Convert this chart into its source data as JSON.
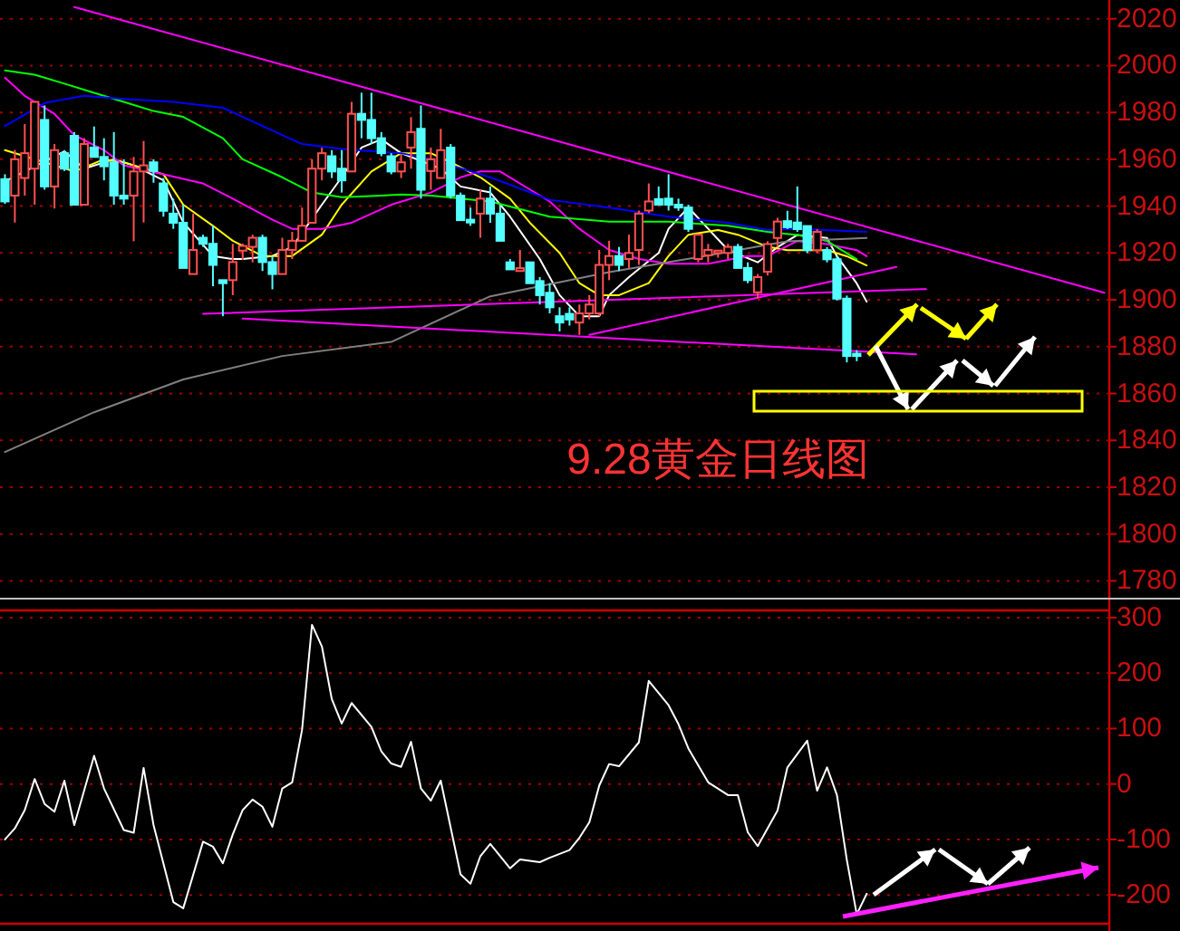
{
  "chart_data": [
    {
      "type": "candlestick",
      "title": "9.28黄金日线图",
      "grid": "y",
      "tick_labels": "y",
      "categories": [
        null,
        null,
        null,
        null,
        null,
        null,
        null,
        null,
        null,
        null,
        null,
        null,
        null,
        null,
        null,
        null,
        null,
        null,
        null,
        null,
        null,
        null,
        null,
        null,
        null,
        null,
        null,
        null,
        null,
        null,
        null,
        null,
        null,
        null,
        null,
        null,
        null,
        null,
        null,
        null,
        null,
        null,
        null,
        null,
        null,
        null,
        null,
        null,
        null,
        null,
        null,
        null,
        null,
        null,
        null,
        null,
        null,
        null,
        null,
        null,
        null,
        null,
        null,
        null,
        null,
        null,
        null,
        null,
        null,
        null,
        null,
        null,
        null,
        null,
        null,
        null,
        null,
        null,
        null,
        null,
        null,
        null,
        null,
        null,
        null,
        null,
        null,
        null,
        null,
        null,
        null,
        null,
        null,
        null,
        null,
        null,
        null,
        null,
        null,
        null,
        null,
        null,
        null,
        null,
        null,
        null,
        null,
        null,
        null,
        null,
        null,
        null
      ],
      "ylim": [
        1779,
        2028
      ],
      "yticks": [
        1780,
        1800,
        1820,
        1840,
        1860,
        1880,
        1900,
        1920,
        1940,
        1960,
        1980,
        2000,
        2020
      ],
      "ohlc": [
        [
          1951.5,
          1953.6,
          1941,
          1942
        ],
        [
          1944.5,
          1964,
          1933,
          1960
        ],
        [
          1952,
          1975,
          1944.5,
          1962.6
        ],
        [
          1956,
          1984.5,
          1940.6,
          1984.5
        ],
        [
          1976.8,
          1983,
          1947,
          1948.4
        ],
        [
          1948.4,
          1966.5,
          1939,
          1963.9
        ],
        [
          1962.6,
          1963.9,
          1955,
          1956
        ],
        [
          1970,
          1971.6,
          1940.6,
          1940.6
        ],
        [
          1940.6,
          1969,
          1940.6,
          1966.5
        ],
        [
          1965,
          1974,
          1961,
          1961
        ],
        [
          1961,
          1969,
          1951,
          1957
        ],
        [
          1958.7,
          1971.6,
          1940.6,
          1944.5
        ],
        [
          1944.5,
          1960,
          1940.6,
          1943.2
        ],
        [
          1944.5,
          1961,
          1925,
          1954.8
        ],
        [
          1954.8,
          1967.8,
          1933,
          1957.4
        ],
        [
          1958.7,
          1960,
          1950,
          1955
        ],
        [
          1949.7,
          1952,
          1935.5,
          1938
        ],
        [
          1936.8,
          1943.2,
          1930.3,
          1932.9
        ],
        [
          1932.9,
          1940.6,
          1913.6,
          1913.6
        ],
        [
          1911,
          1936.8,
          1911,
          1921.3
        ],
        [
          1926.5,
          1927.8,
          1922.6,
          1923.9
        ],
        [
          1923.9,
          1931.6,
          1905.8,
          1914.9
        ],
        [
          1908.4,
          1908.4,
          1893,
          1907.1
        ],
        [
          1908.4,
          1923.9,
          1902,
          1916.1
        ],
        [
          1921,
          1924,
          1917,
          1923
        ],
        [
          1922.6,
          1927.8,
          1916,
          1926.5
        ],
        [
          1926.5,
          1927.8,
          1912.3,
          1916.1
        ],
        [
          1916.1,
          1918.7,
          1904.5,
          1911
        ],
        [
          1911,
          1926.5,
          1911,
          1921.3
        ],
        [
          1921.3,
          1929,
          1917.4,
          1925.2
        ],
        [
          1925.2,
          1939.4,
          1925.2,
          1931.6
        ],
        [
          1932.9,
          1960,
          1932.9,
          1956
        ],
        [
          1956,
          1965,
          1951,
          1962.6
        ],
        [
          1961.3,
          1963.9,
          1952,
          1954.8
        ],
        [
          1956,
          1963.9,
          1945.8,
          1951
        ],
        [
          1954.8,
          1984.5,
          1954.8,
          1979.4
        ],
        [
          1979.4,
          1988.4,
          1969,
          1976.8
        ],
        [
          1976.8,
          1988.4,
          1966.5,
          1969
        ],
        [
          1969,
          1971.6,
          1961.3,
          1962.6
        ],
        [
          1961.3,
          1962.6,
          1953.6,
          1954.8
        ],
        [
          1954.8,
          1962,
          1952,
          1958.7
        ],
        [
          1965,
          1978,
          1956,
          1971.6
        ],
        [
          1973,
          1983,
          1943.2,
          1947
        ],
        [
          1955,
          1965,
          1947,
          1960
        ],
        [
          1952,
          1973,
          1952,
          1963.9
        ],
        [
          1965,
          1966.5,
          1943.2,
          1944.5
        ],
        [
          1944.5,
          1945.8,
          1934,
          1934
        ],
        [
          1934.2,
          1939.4,
          1931.6,
          1933
        ],
        [
          1936.8,
          1947,
          1926.5,
          1943.2
        ],
        [
          1943.2,
          1948.4,
          1932.9,
          1936.8
        ],
        [
          1936.8,
          1940.6,
          1925.2,
          1925.2
        ],
        [
          1916,
          1917.4,
          1912.8,
          1913
        ],
        [
          1912.3,
          1921.3,
          1912.3,
          1913.5
        ],
        [
          1916,
          1916,
          1907.1,
          1907.1
        ],
        [
          1908,
          1909.7,
          1898,
          1902
        ],
        [
          1903,
          1907.1,
          1894.2,
          1896.8
        ],
        [
          1893,
          1896.8,
          1886.5,
          1890.3
        ],
        [
          1894,
          1896.8,
          1889,
          1891.6
        ],
        [
          1890.3,
          1898,
          1885,
          1894.2
        ],
        [
          1894.2,
          1902,
          1891.6,
          1898
        ],
        [
          1894.2,
          1921.3,
          1892.9,
          1914.9
        ],
        [
          1914.9,
          1925.2,
          1908.4,
          1918.7
        ],
        [
          1918.7,
          1922.6,
          1912.3,
          1914.9
        ],
        [
          1917.4,
          1927.8,
          1913.6,
          1920
        ],
        [
          1921.3,
          1938.1,
          1914.9,
          1936.8
        ],
        [
          1938.1,
          1949.7,
          1937,
          1942
        ],
        [
          1943,
          1948.4,
          1940.6,
          1940.6
        ],
        [
          1943.2,
          1953.6,
          1938.1,
          1940.6
        ],
        [
          1940.6,
          1943.2,
          1938,
          1939.4
        ],
        [
          1939.4,
          1940.6,
          1929,
          1930.3
        ],
        [
          1917.4,
          1927.8,
          1916,
          1927.8
        ],
        [
          1919,
          1923.9,
          1916,
          1921.3
        ],
        [
          1920,
          1921.3,
          1918,
          1921
        ],
        [
          1920,
          1923.9,
          1917.4,
          1922.6
        ],
        [
          1922.6,
          1923.9,
          1913.6,
          1913.6
        ],
        [
          1913.6,
          1916,
          1907.1,
          1908.4
        ],
        [
          1903.2,
          1911,
          1900.6,
          1909.7
        ],
        [
          1912,
          1925,
          1910.4,
          1923.8
        ],
        [
          1926.4,
          1935,
          1922.5,
          1933.4
        ],
        [
          1933.6,
          1938,
          1930.2,
          1931
        ],
        [
          1933,
          1948.4,
          1929,
          1930.2
        ],
        [
          1931.5,
          1931.5,
          1919.9,
          1921.2
        ],
        [
          1921.2,
          1930.2,
          1919.9,
          1929
        ],
        [
          1921.2,
          1922.5,
          1916,
          1917.3
        ],
        [
          1917.3,
          1918.6,
          1899.7,
          1900.5
        ],
        [
          1900.5,
          1901.8,
          1873.3,
          1876
        ],
        [
          1877,
          1878.5,
          1873.8,
          1876
        ],
        null,
        null,
        null,
        null,
        null,
        null,
        null,
        null,
        null,
        null,
        null,
        null,
        null,
        null,
        null,
        null,
        null,
        null,
        null,
        null,
        null,
        null,
        null,
        null,
        null
      ],
      "series": [
        {
          "type": "line",
          "color": "#ffffff",
          "values": [
            1950.5,
            null,
            null,
            null,
            null,
            null,
            1963.4,
            null,
            1956,
            null,
            null,
            1960,
            null,
            1957.4,
            null,
            null,
            1951,
            null,
            1933,
            null,
            null,
            1918.7,
            null,
            1917.4,
            1917.4,
            null,
            null,
            1918.7,
            null,
            1922.6,
            null,
            null,
            1940.6,
            null,
            1952.3,
            null,
            1965,
            null,
            1968.5,
            null,
            1962.6,
            null,
            null,
            null,
            1956,
            null,
            1948.4,
            null,
            null,
            1945.8,
            null,
            1935.5,
            null,
            null,
            1917.4,
            null,
            1902,
            null,
            1893,
            null,
            1893,
            1902,
            null,
            1909.7,
            null,
            null,
            1920,
            1930.3,
            null,
            1939.4,
            null,
            1930.3,
            null,
            1921.3,
            null,
            null,
            1916,
            null,
            1922.5,
            null,
            1927.7,
            null,
            null,
            1926.4,
            1918.6,
            null,
            1907,
            1899.2,
            null,
            null,
            null,
            null,
            null,
            null,
            null,
            null,
            null,
            null,
            null,
            null,
            null,
            null,
            null,
            null,
            null,
            null,
            null,
            null,
            null,
            null,
            null,
            null
          ]
        },
        {
          "type": "line",
          "color": "#ffff00",
          "values": [
            1963.9,
            null,
            null,
            null,
            null,
            null,
            null,
            1954.8,
            null,
            null,
            1960,
            null,
            1958.7,
            null,
            null,
            null,
            1953.6,
            null,
            1940.6,
            null,
            null,
            1931.6,
            null,
            1925.2,
            null,
            null,
            1918.7,
            null,
            null,
            1918.7,
            null,
            null,
            1927.8,
            null,
            1940.6,
            null,
            null,
            1954.8,
            null,
            1960,
            1962.6,
            null,
            null,
            1962.6,
            null,
            1958.7,
            null,
            null,
            1952.3,
            null,
            null,
            1943.2,
            null,
            1932.9,
            null,
            null,
            1920,
            null,
            1907.1,
            null,
            1902,
            null,
            1902,
            null,
            null,
            1907.1,
            null,
            1918.7,
            null,
            1927.8,
            null,
            null,
            1929.8,
            null,
            1927.8,
            null,
            null,
            1922.6,
            null,
            1921.2,
            null,
            null,
            null,
            1921.2,
            null,
            1918.6,
            null,
            1914.7,
            null,
            null,
            null,
            null,
            null,
            null,
            null,
            null,
            null,
            null,
            null,
            null,
            null,
            null,
            null,
            null,
            null,
            null,
            null,
            null,
            null,
            null,
            null,
            null
          ]
        },
        {
          "type": "line",
          "color": "#ff00ff",
          "values": [
            1994.8,
            null,
            1987.1,
            null,
            null,
            1979.4,
            null,
            1970.3,
            null,
            null,
            1963.9,
            null,
            1957.4,
            null,
            null,
            null,
            1953.6,
            null,
            null,
            null,
            1949.7,
            null,
            null,
            1943.2,
            null,
            null,
            null,
            1934.2,
            null,
            1930.3,
            null,
            null,
            1930.3,
            null,
            null,
            1932.9,
            null,
            null,
            null,
            1940.6,
            null,
            null,
            null,
            1945.8,
            null,
            null,
            1952.3,
            null,
            1954.8,
            null,
            1954.8,
            null,
            null,
            1947.1,
            null,
            1942,
            null,
            null,
            1930.3,
            null,
            null,
            1921.3,
            null,
            null,
            1917.4,
            null,
            null,
            1915.4,
            null,
            null,
            null,
            1915.4,
            null,
            null,
            null,
            1918.7,
            null,
            1918.7,
            null,
            null,
            1925.1,
            null,
            null,
            1923.8,
            null,
            null,
            1921.2,
            1918.6,
            null,
            null,
            null,
            null,
            null,
            null,
            null,
            null,
            null,
            null,
            null,
            null,
            null,
            null,
            null,
            null,
            null,
            null,
            null,
            null,
            null,
            null,
            null,
            null
          ]
        },
        {
          "type": "line",
          "color": "#00ff00",
          "values": [
            1997.9,
            null,
            null,
            1996.1,
            null,
            null,
            1992.3,
            null,
            null,
            1988.4,
            null,
            null,
            1984.5,
            null,
            null,
            1980.6,
            null,
            null,
            1978.1,
            null,
            null,
            null,
            1969,
            null,
            1960,
            null,
            null,
            null,
            1952.3,
            null,
            null,
            1945.8,
            null,
            null,
            1943.8,
            null,
            null,
            null,
            1944.5,
            null,
            1945,
            null,
            null,
            1944.5,
            null,
            null,
            null,
            null,
            null,
            1942,
            null,
            null,
            null,
            null,
            null,
            1935.5,
            null,
            null,
            null,
            null,
            null,
            1933.4,
            null,
            null,
            null,
            null,
            null,
            1933.4,
            null,
            null,
            null,
            null,
            null,
            1931.6,
            null,
            null,
            null,
            1929,
            null,
            null,
            1927.7,
            null,
            null,
            1925.1,
            null,
            null,
            1917.3,
            null,
            null,
            null,
            null,
            null,
            null,
            null,
            null,
            null,
            null,
            null,
            null,
            null,
            null,
            null,
            null,
            null,
            null,
            null,
            null,
            null,
            null,
            null,
            null,
            null
          ]
        },
        {
          "type": "line",
          "color": "#0000ff",
          "values": [
            1974.2,
            null,
            null,
            null,
            1984,
            null,
            null,
            null,
            1987.1,
            null,
            null,
            null,
            1985.8,
            null,
            null,
            null,
            null,
            1984.5,
            null,
            null,
            null,
            null,
            1982,
            null,
            null,
            null,
            1974.2,
            null,
            null,
            null,
            1966.5,
            null,
            null,
            null,
            1964.4,
            null,
            null,
            null,
            null,
            null,
            1962.6,
            null,
            null,
            1960,
            null,
            null,
            null,
            null,
            null,
            1952.3,
            null,
            null,
            null,
            null,
            null,
            1942.7,
            null,
            null,
            null,
            null,
            null,
            1939.4,
            null,
            null,
            null,
            null,
            null,
            1935.5,
            null,
            null,
            null,
            null,
            null,
            1932.9,
            null,
            null,
            null,
            1929.8,
            null,
            null,
            1930.3,
            null,
            null,
            null,
            null,
            null,
            null,
            1929,
            null,
            null,
            null,
            null,
            null,
            null,
            null,
            null,
            null,
            null,
            null,
            null,
            null,
            null,
            null,
            null,
            null,
            null,
            null,
            null,
            null,
            null,
            null,
            null
          ]
        },
        {
          "type": "line",
          "color": "#808080",
          "values": [
            1835,
            null,
            null,
            null,
            null,
            null,
            null,
            null,
            null,
            1852,
            null,
            null,
            null,
            null,
            null,
            null,
            null,
            null,
            1866,
            null,
            null,
            null,
            null,
            null,
            null,
            null,
            null,
            null,
            1876,
            null,
            null,
            null,
            null,
            null,
            null,
            null,
            null,
            null,
            null,
            1882,
            null,
            null,
            null,
            null,
            null,
            null,
            null,
            null,
            null,
            1901.5,
            null,
            null,
            null,
            null,
            null,
            null,
            null,
            null,
            null,
            null,
            null,
            1911.8,
            null,
            null,
            null,
            null,
            null,
            null,
            null,
            null,
            1918.2,
            null,
            null,
            null,
            null,
            null,
            null,
            1923.5,
            null,
            1925,
            null,
            null,
            null,
            null,
            null,
            null,
            null,
            1926.4,
            null,
            null,
            null,
            null,
            null,
            null,
            null,
            null,
            null,
            null,
            null,
            null,
            null,
            null,
            null,
            null,
            null,
            null,
            null,
            null,
            null,
            null,
            null,
            null
          ]
        },
        {
          "type": "line",
          "color": "#ff00ff",
          "values": [
            null,
            null,
            null,
            null,
            null,
            null,
            null,
            2025,
            null,
            null,
            null,
            null,
            null,
            null,
            null,
            null,
            null,
            null,
            null,
            null,
            null,
            null,
            null,
            null,
            null,
            null,
            null,
            null,
            null,
            null,
            null,
            null,
            null,
            null,
            null,
            null,
            null,
            null,
            null,
            null,
            null,
            null,
            null,
            null,
            null,
            null,
            null,
            null,
            null,
            null,
            null,
            null,
            null,
            null,
            null,
            null,
            null,
            null,
            null,
            null,
            null,
            null,
            null,
            null,
            null,
            null,
            null,
            null,
            null,
            null,
            null,
            null,
            null,
            null,
            null,
            null,
            null,
            null,
            null,
            null,
            null,
            null,
            null,
            null,
            null,
            null,
            null,
            null,
            null,
            null,
            null,
            null,
            null,
            null,
            null,
            null,
            null,
            null,
            null,
            null,
            null,
            null,
            null,
            null,
            null,
            null,
            null,
            null,
            null,
            null,
            null,
            1903
          ]
        },
        {
          "type": "line",
          "color": "#ff00ff",
          "values": [
            null,
            null,
            null,
            null,
            null,
            null,
            null,
            null,
            null,
            null,
            null,
            null,
            null,
            null,
            null,
            null,
            null,
            null,
            null,
            null,
            1894,
            null,
            null,
            null,
            null,
            null,
            null,
            null,
            null,
            null,
            null,
            null,
            null,
            null,
            null,
            null,
            null,
            null,
            null,
            null,
            null,
            null,
            null,
            null,
            null,
            null,
            null,
            null,
            null,
            null,
            null,
            null,
            null,
            null,
            null,
            null,
            null,
            null,
            null,
            null,
            null,
            null,
            null,
            null,
            null,
            null,
            null,
            null,
            null,
            null,
            null,
            null,
            null,
            null,
            null,
            null,
            null,
            null,
            null,
            null,
            null,
            null,
            null,
            null,
            null,
            null,
            null,
            null,
            null,
            null,
            null,
            null,
            null,
            1904.6,
            null,
            null,
            null,
            null,
            null,
            null,
            null,
            null,
            null,
            null,
            null,
            null,
            null,
            null,
            null,
            null,
            null,
            null
          ]
        },
        {
          "type": "line",
          "color": "#ff00ff",
          "values": [
            null,
            null,
            null,
            null,
            null,
            null,
            null,
            null,
            null,
            null,
            null,
            null,
            null,
            null,
            null,
            null,
            null,
            null,
            null,
            null,
            null,
            null,
            null,
            null,
            1892,
            null,
            null,
            null,
            null,
            null,
            null,
            null,
            null,
            null,
            null,
            null,
            null,
            null,
            null,
            null,
            null,
            null,
            null,
            null,
            null,
            null,
            null,
            null,
            null,
            null,
            null,
            null,
            null,
            null,
            null,
            null,
            null,
            null,
            null,
            null,
            null,
            null,
            null,
            null,
            null,
            null,
            null,
            null,
            null,
            null,
            null,
            null,
            null,
            null,
            null,
            null,
            null,
            null,
            null,
            null,
            null,
            null,
            null,
            null,
            null,
            null,
            null,
            null,
            null,
            null,
            null,
            null,
            1876.7,
            null,
            null,
            null,
            null,
            null,
            null,
            null,
            null,
            null,
            null,
            null,
            null,
            null,
            null,
            null,
            null,
            null,
            null,
            null
          ]
        },
        {
          "type": "line",
          "color": "#ff00ff",
          "values": [
            null,
            null,
            null,
            null,
            null,
            null,
            null,
            null,
            null,
            null,
            null,
            null,
            null,
            null,
            null,
            null,
            null,
            null,
            null,
            null,
            null,
            null,
            null,
            null,
            null,
            null,
            null,
            null,
            null,
            null,
            null,
            null,
            null,
            null,
            null,
            null,
            null,
            null,
            null,
            null,
            null,
            null,
            null,
            null,
            null,
            null,
            null,
            null,
            null,
            null,
            null,
            null,
            null,
            null,
            null,
            null,
            null,
            null,
            null,
            1885,
            null,
            null,
            null,
            null,
            null,
            null,
            null,
            null,
            null,
            null,
            null,
            null,
            null,
            null,
            null,
            null,
            null,
            null,
            null,
            null,
            null,
            null,
            null,
            null,
            null,
            null,
            null,
            null,
            null,
            null,
            1914,
            null,
            null,
            null,
            null,
            null,
            null,
            null,
            null,
            null,
            null,
            null,
            null,
            null,
            null,
            null,
            null,
            null,
            null,
            null,
            null,
            null
          ]
        }
      ]
    },
    {
      "type": "line",
      "grid": "y",
      "tick_labels": "y",
      "categories": [
        null,
        null,
        null,
        null,
        null,
        null,
        null,
        null,
        null,
        null,
        null,
        null,
        null,
        null,
        null,
        null,
        null,
        null,
        null,
        null,
        null,
        null,
        null,
        null,
        null,
        null,
        null,
        null,
        null,
        null,
        null,
        null,
        null,
        null,
        null,
        null,
        null,
        null,
        null,
        null,
        null,
        null,
        null,
        null,
        null,
        null,
        null,
        null,
        null,
        null,
        null,
        null,
        null,
        null,
        null,
        null,
        null,
        null,
        null,
        null,
        null,
        null,
        null,
        null,
        null,
        null,
        null,
        null,
        null,
        null,
        null,
        null,
        null,
        null,
        null,
        null,
        null,
        null,
        null,
        null,
        null,
        null,
        null,
        null,
        null,
        null,
        null,
        null,
        null,
        null,
        null,
        null,
        null,
        null,
        null,
        null,
        null,
        null,
        null,
        null,
        null,
        null,
        null,
        null,
        null,
        null,
        null,
        null,
        null,
        null,
        null,
        null
      ],
      "ylim": [
        -252,
        313
      ],
      "yticks": [
        -200,
        -100,
        0,
        100,
        200,
        300
      ],
      "series": [
        {
          "color": "#ffffff",
          "values": [
            -100,
            -80,
            -47,
            9,
            -36,
            -50,
            6,
            -74,
            null,
            51,
            -8,
            null,
            -83,
            -88,
            29,
            -74,
            null,
            -213,
            -224,
            null,
            -104,
            -113,
            -143,
            -91,
            -47,
            -28,
            -41,
            -77,
            -8,
            3,
            98,
            287,
            248,
            153,
            109,
            146,
            null,
            103,
            59,
            37,
            31,
            76,
            -8,
            -30,
            6,
            null,
            -163,
            -180,
            -130,
            -108,
            -130,
            -152,
            -136,
            null,
            -141,
            -133,
            null,
            -119,
            -97,
            -69,
            -3,
            36,
            32,
            null,
            75,
            186,
            null,
            142,
            108,
            64,
            null,
            3,
            null,
            -20,
            -20,
            -87,
            -112,
            null,
            -48,
            30,
            null,
            78,
            -12,
            30,
            -20,
            -137,
            -235,
            -198,
            null,
            null,
            null,
            null,
            null,
            null,
            null,
            null,
            null,
            null,
            null,
            null,
            null,
            null,
            null,
            null,
            null,
            null,
            null,
            null,
            null,
            null,
            null,
            null
          ]
        }
      ]
    }
  ]
}
